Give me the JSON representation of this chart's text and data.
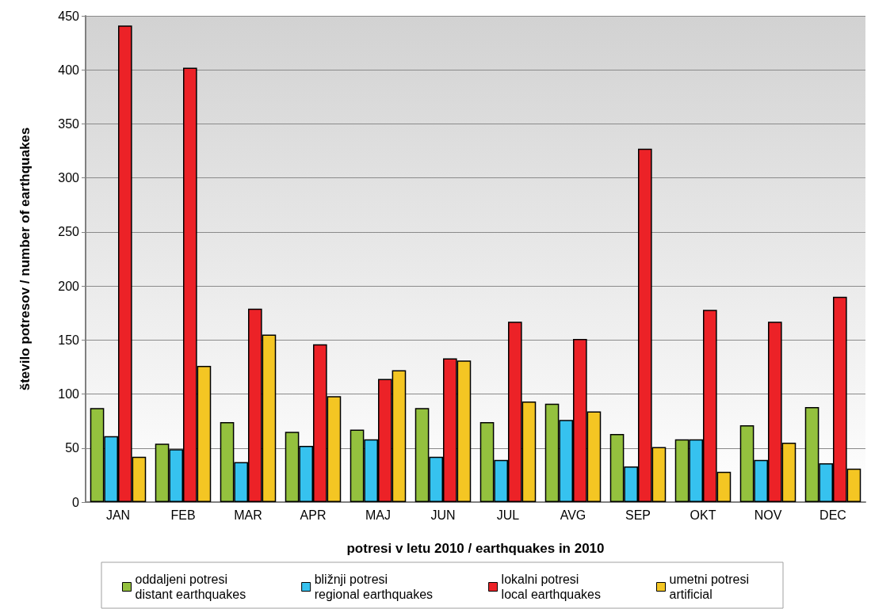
{
  "chart_data": {
    "type": "bar",
    "xlabel": "potresi v letu 2010 / earthquakes in 2010",
    "ylabel": "število potresov / number of earthquakes",
    "categories": [
      "JAN",
      "FEB",
      "MAR",
      "APR",
      "MAJ",
      "JUN",
      "JUL",
      "AVG",
      "SEP",
      "OKT",
      "NOV",
      "DEC"
    ],
    "series": [
      {
        "name": "oddaljeni potresi\ndistant earthquakes",
        "color": "#94c13e",
        "values": [
          87,
          54,
          74,
          65,
          67,
          87,
          74,
          91,
          63,
          58,
          71,
          88
        ]
      },
      {
        "name": "bližnji potresi\nregional earthquakes",
        "color": "#36c2ef",
        "values": [
          61,
          49,
          37,
          52,
          58,
          42,
          39,
          76,
          33,
          58,
          39,
          36
        ]
      },
      {
        "name": "lokalni potresi\nlocal earthquakes",
        "color": "#ec2227",
        "values": [
          441,
          402,
          179,
          146,
          114,
          133,
          167,
          151,
          327,
          178,
          167,
          190
        ]
      },
      {
        "name": "umetni potresi\nartificial",
        "color": "#f4c623",
        "values": [
          42,
          126,
          155,
          98,
          122,
          131,
          93,
          84,
          51,
          28,
          55,
          31
        ]
      }
    ],
    "ylim": [
      0,
      450
    ],
    "yticks": [
      0,
      50,
      100,
      150,
      200,
      250,
      300,
      350,
      400,
      450
    ],
    "grid": "y",
    "legend": "bottom"
  }
}
